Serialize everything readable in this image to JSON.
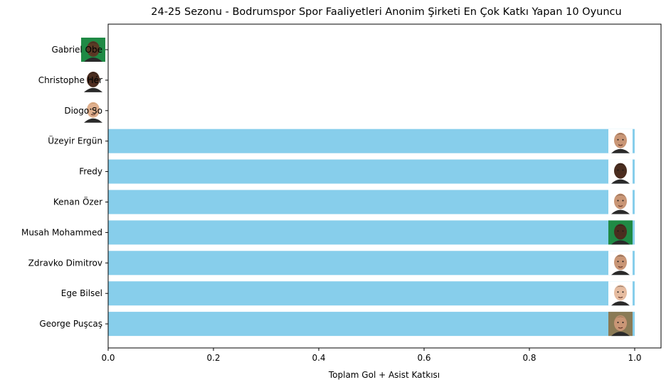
{
  "chart_data": {
    "type": "bar",
    "orientation": "horizontal",
    "title": "24-25 Sezonu - Bodrumspor Spor Faaliyetleri Anonim Şirketi En Çok Katkı Yapan 10 Oyuncu",
    "xlabel": "Toplam Gol + Asist Katkısı",
    "ylabel": "",
    "xlim": [
      0,
      1.05
    ],
    "xticks": [
      "0.0",
      "0.2",
      "0.4",
      "0.6",
      "0.8",
      "1.0"
    ],
    "grid": false,
    "bar_color": "#87ceeb",
    "categories": [
      "Gabriel Obekpa",
      "Christophe Hérelle",
      "Diogo Sousa",
      "Üzeyir Ergün",
      "Fredy",
      "Kenan Özer",
      "Musah Mohammed",
      "Zdravko Dimitrov",
      "Ege Bilsel",
      "George Puşcaş"
    ],
    "display_labels": [
      "Gabriel Obe",
      "Christophe Hér",
      "Diogo So",
      "Üzeyir Ergün",
      "Fredy",
      "Kenan Özer",
      "Musah Mohammed",
      "Zdravko Dimitrov",
      "Ege Bilsel",
      "George Puşcaş"
    ],
    "values": [
      0,
      0,
      0,
      1,
      1,
      1,
      1,
      1,
      1,
      1
    ],
    "player_photos": [
      {
        "icon": "player-photo-icon",
        "skin": "#5a3a25",
        "bg": "#1f8a45",
        "hair": "#1a1a1a"
      },
      {
        "icon": "player-photo-icon",
        "skin": "#4a2d1f",
        "bg": "#ffffff",
        "hair": "#1a1a1a"
      },
      {
        "icon": "player-photo-icon",
        "skin": "#e0b08e",
        "bg": "#ffffff",
        "hair": "#b08850"
      },
      {
        "icon": "player-photo-icon",
        "skin": "#c99676",
        "bg": "#ffffff",
        "hair": "#3a2a20"
      },
      {
        "icon": "player-photo-icon",
        "skin": "#4a2d1f",
        "bg": "#ffffff",
        "hair": "#1a1a1a"
      },
      {
        "icon": "player-photo-icon",
        "skin": "#c99676",
        "bg": "#ffffff",
        "hair": "#3a2a20"
      },
      {
        "icon": "player-photo-icon",
        "skin": "#4a2d1f",
        "bg": "#1f8a45",
        "hair": "#1a1a1a"
      },
      {
        "icon": "player-photo-icon",
        "skin": "#c99676",
        "bg": "#ffffff",
        "hair": "#1a1a1a"
      },
      {
        "icon": "player-photo-icon",
        "skin": "#e6bca0",
        "bg": "#ffffff",
        "hair": "#2a2a2a"
      },
      {
        "icon": "player-photo-icon",
        "skin": "#c99676",
        "bg": "#8a7a55",
        "hair": "#6a5030"
      }
    ]
  }
}
